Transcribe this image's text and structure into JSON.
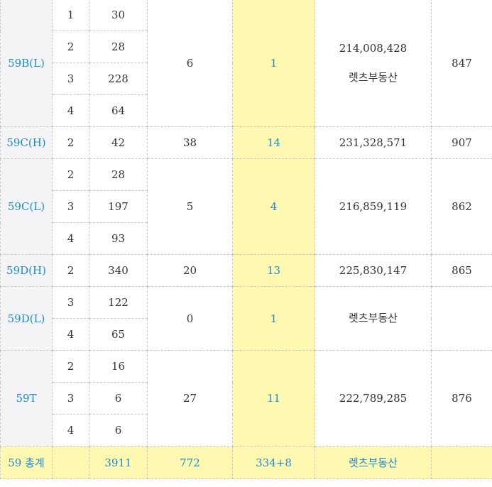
{
  "rows": [
    {
      "type": "59B(L)",
      "sub": [
        {
          "n": "1",
          "c": "30"
        },
        {
          "n": "2",
          "c": "28"
        },
        {
          "n": "3",
          "c": "228"
        },
        {
          "n": "4",
          "c": "64"
        }
      ],
      "a": "6",
      "b": "1",
      "price": "214,008,428",
      "note": "렛츠부동산",
      "last": "847"
    },
    {
      "type": "59C(H)",
      "sub": [
        {
          "n": "2",
          "c": "42"
        }
      ],
      "a": "38",
      "b": "14",
      "price": "231,328,571",
      "note": "",
      "last": "907"
    },
    {
      "type": "59C(L)",
      "sub": [
        {
          "n": "2",
          "c": "28"
        },
        {
          "n": "3",
          "c": "197"
        },
        {
          "n": "4",
          "c": "93"
        }
      ],
      "a": "5",
      "b": "4",
      "price": "216,859,119",
      "note": "",
      "last": "862"
    },
    {
      "type": "59D(H)",
      "sub": [
        {
          "n": "2",
          "c": "340"
        }
      ],
      "a": "20",
      "b": "13",
      "price": "225,830,147",
      "note": "",
      "last": "865"
    },
    {
      "type": "59D(L)",
      "sub": [
        {
          "n": "3",
          "c": "122"
        },
        {
          "n": "4",
          "c": "65"
        }
      ],
      "a": "0",
      "b": "1",
      "price": "",
      "note": "렛츠부동산",
      "last": ""
    },
    {
      "type": "59T",
      "sub": [
        {
          "n": "2",
          "c": "16"
        },
        {
          "n": "3",
          "c": "6"
        },
        {
          "n": "4",
          "c": "6"
        }
      ],
      "a": "27",
      "b": "11",
      "price": "222,789,285",
      "note": "",
      "last": "876"
    }
  ],
  "total": {
    "label": "59 총계",
    "c": "3911",
    "a": "772",
    "b": "334+8",
    "note": "렛츠부동산",
    "last": ""
  }
}
